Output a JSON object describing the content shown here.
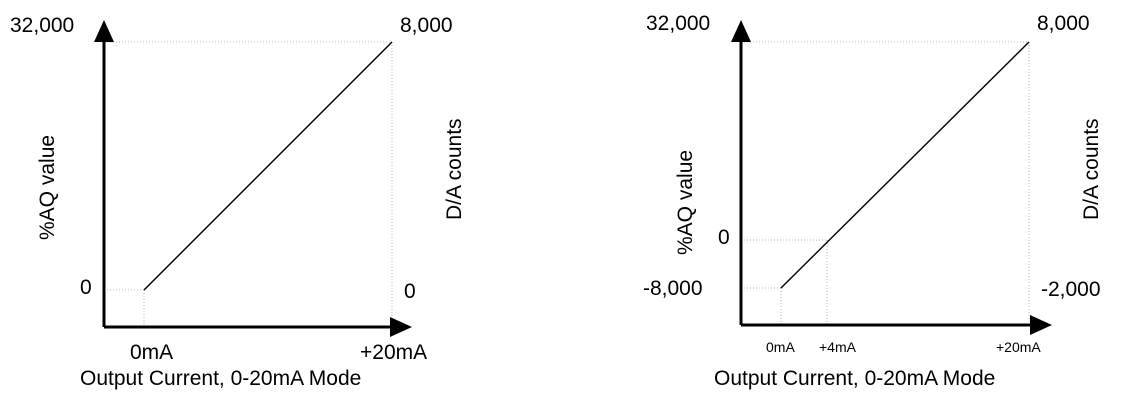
{
  "left": {
    "left_top": "32,000",
    "left_bottom": "0",
    "right_top": "8,000",
    "right_bottom": "0",
    "left_axis_label": "%AQ value",
    "right_axis_label": "D/A counts",
    "x_start": "0mA",
    "x_end": "+20mA",
    "x_title": "Output Current, 0-20mA Mode"
  },
  "right": {
    "left_top": "32,000",
    "left_zero": "0",
    "left_bottom": "-8,000",
    "right_top": "8,000",
    "right_bottom": "-2,000",
    "left_axis_label": "%AQ value",
    "right_axis_label": "D/A counts",
    "x_start": "0mA",
    "x_mid": "+4mA",
    "x_end": "+20mA",
    "x_title": "Output Current, 0-20mA Mode"
  }
}
